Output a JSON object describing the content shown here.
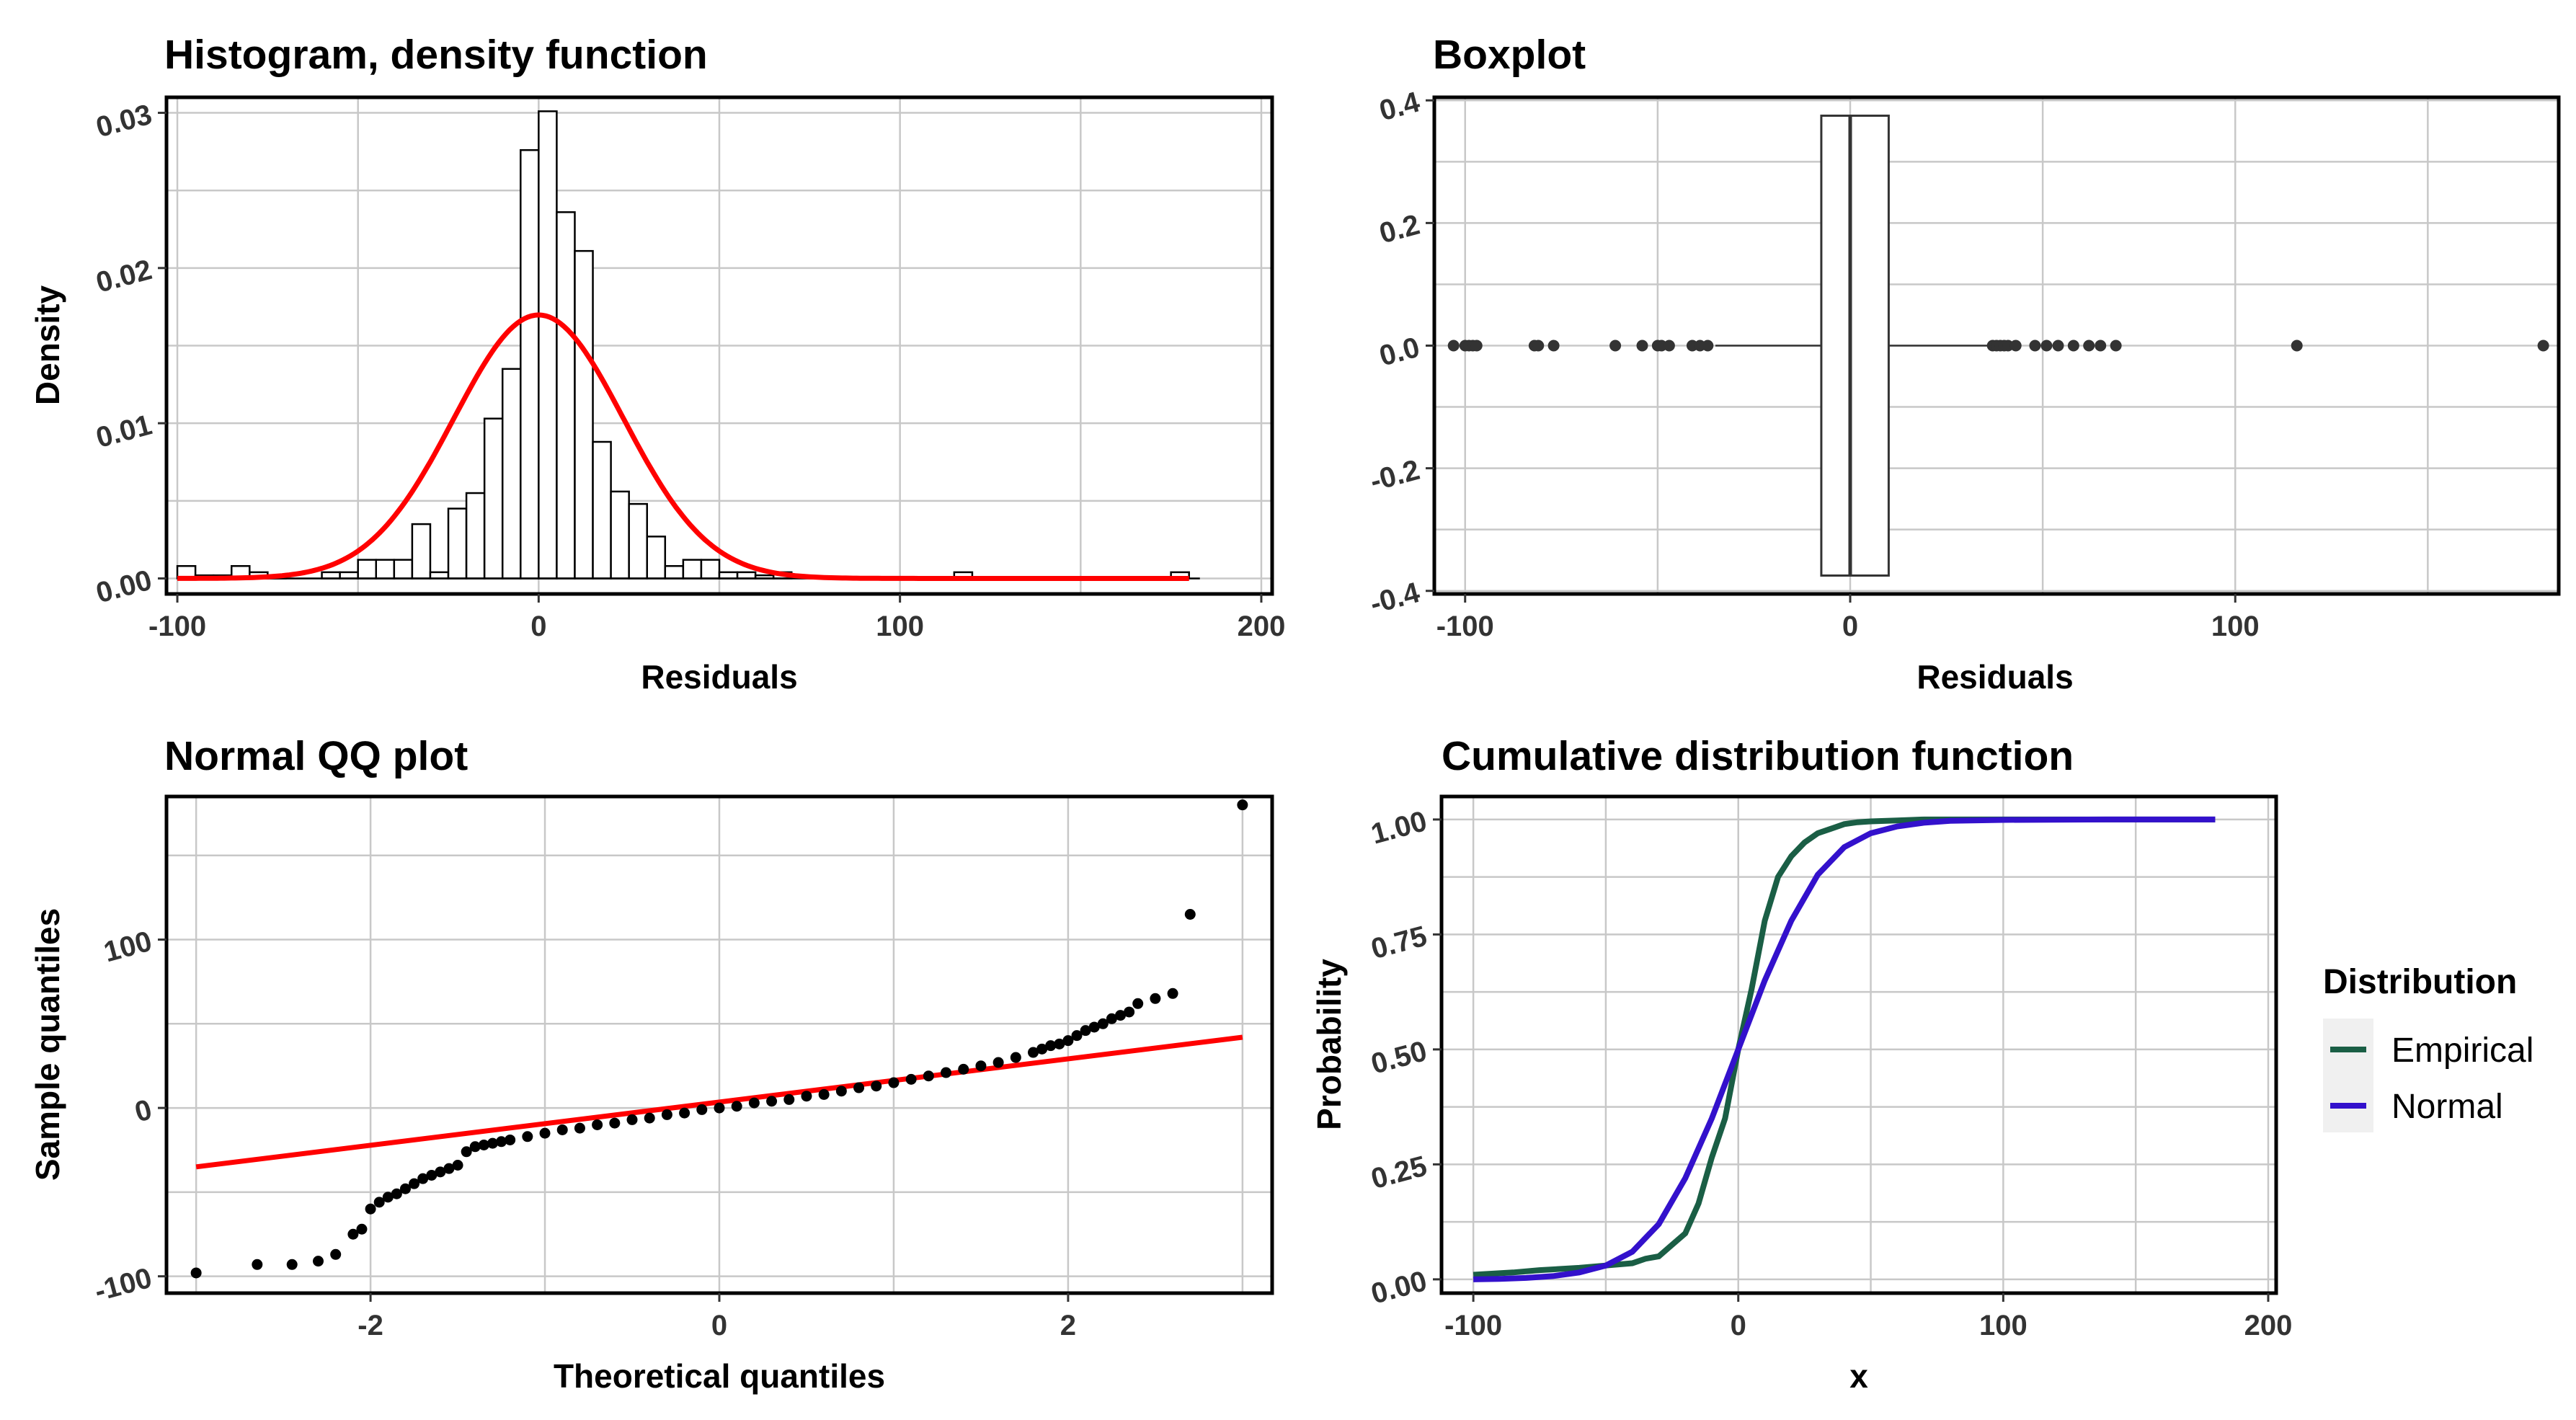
{
  "colors": {
    "grid": "#c8c8c8",
    "red": "#ff0000",
    "empirical": "#1a5e45",
    "normal": "#3311cc",
    "legend_bg": "#f0f0f0"
  },
  "chart_data": [
    {
      "type": "bar",
      "title": "Histogram, density function",
      "xlabel": "Residuals",
      "ylabel": "Density",
      "xlim": [
        -103,
        203
      ],
      "ylim": [
        -0.001,
        0.031
      ],
      "x_ticks": [
        -100,
        0,
        100,
        200
      ],
      "y_ticks": [
        0.0,
        0.01,
        0.02,
        0.03
      ],
      "x_tick_labels": [
        "-100",
        "0",
        "100",
        "200"
      ],
      "y_tick_labels": [
        "0.00",
        "0.01",
        "0.02",
        "0.03"
      ],
      "bin_width": 5,
      "bins": [
        {
          "x0": -100,
          "density": 0.0008
        },
        {
          "x0": -95,
          "density": 0.0002
        },
        {
          "x0": -90,
          "density": 0.0002
        },
        {
          "x0": -85,
          "density": 0.0008
        },
        {
          "x0": -80,
          "density": 0.0004
        },
        {
          "x0": -75,
          "density": 0.0002
        },
        {
          "x0": -60,
          "density": 0.0004
        },
        {
          "x0": -55,
          "density": 0.0004
        },
        {
          "x0": -50,
          "density": 0.0012
        },
        {
          "x0": -45,
          "density": 0.0012
        },
        {
          "x0": -40,
          "density": 0.0012
        },
        {
          "x0": -35,
          "density": 0.0035
        },
        {
          "x0": -30,
          "density": 0.0004
        },
        {
          "x0": -25,
          "density": 0.0045
        },
        {
          "x0": -20,
          "density": 0.0055
        },
        {
          "x0": -15,
          "density": 0.0103
        },
        {
          "x0": -10,
          "density": 0.0135
        },
        {
          "x0": -5,
          "density": 0.0276
        },
        {
          "x0": 0,
          "density": 0.0301
        },
        {
          "x0": 5,
          "density": 0.0236
        },
        {
          "x0": 10,
          "density": 0.0211
        },
        {
          "x0": 15,
          "density": 0.0088
        },
        {
          "x0": 20,
          "density": 0.0056
        },
        {
          "x0": 25,
          "density": 0.0048
        },
        {
          "x0": 30,
          "density": 0.0027
        },
        {
          "x0": 35,
          "density": 0.0008
        },
        {
          "x0": 40,
          "density": 0.0012
        },
        {
          "x0": 45,
          "density": 0.0012
        },
        {
          "x0": 50,
          "density": 0.0004
        },
        {
          "x0": 55,
          "density": 0.0004
        },
        {
          "x0": 60,
          "density": 0.0002
        },
        {
          "x0": 65,
          "density": 0.0004
        },
        {
          "x0": 115,
          "density": 0.0004
        },
        {
          "x0": 175,
          "density": 0.0004
        }
      ],
      "density_curve": {
        "type": "normal",
        "mean": 0,
        "sd": 23.5,
        "color": "red"
      }
    },
    {
      "type": "boxplot",
      "title": "Boxplot",
      "xlabel": "Residuals",
      "ylabel": "",
      "xlim": [
        -108,
        184
      ],
      "ylim": [
        -0.405,
        0.405
      ],
      "x_ticks": [
        -100,
        0,
        100
      ],
      "y_ticks": [
        -0.4,
        -0.2,
        0.0,
        0.2,
        0.4
      ],
      "x_tick_labels": [
        "-100",
        "0",
        "100"
      ],
      "y_tick_labels": [
        "-0.4",
        "-0.2",
        "0.0",
        "0.2",
        "0.4"
      ],
      "q1": -7.5,
      "median": 0,
      "q3": 10,
      "whisker_low": -35,
      "whisker_high": 37,
      "outliers": [
        -103,
        -100,
        -99,
        -98,
        -97,
        -82,
        -81,
        -77,
        -61,
        -54,
        -50,
        -49,
        -47,
        -41,
        -39,
        -37,
        37,
        38,
        39,
        40,
        41,
        43,
        48,
        51,
        54,
        58,
        62,
        65,
        69,
        116,
        180
      ]
    },
    {
      "type": "scatter",
      "title": "Normal QQ plot",
      "xlabel": "Theoretical quantiles",
      "ylabel": "Sample quantiles",
      "xlim": [
        -3.17,
        3.17
      ],
      "ylim": [
        -110,
        185
      ],
      "x_ticks": [
        -2,
        0,
        2
      ],
      "y_ticks": [
        -100,
        0,
        100
      ],
      "x_tick_labels": [
        "-2",
        "0",
        "2"
      ],
      "y_tick_labels": [
        "-100",
        "0",
        "100"
      ],
      "reference_line": {
        "x": [
          -3.0,
          3.0
        ],
        "y": [
          -35,
          42
        ],
        "color": "red"
      },
      "points": [
        [
          -3.0,
          -98
        ],
        [
          -2.65,
          -93
        ],
        [
          -2.45,
          -93
        ],
        [
          -2.3,
          -91
        ],
        [
          -2.2,
          -87
        ],
        [
          -2.1,
          -75
        ],
        [
          -2.05,
          -72
        ],
        [
          -2.0,
          -60
        ],
        [
          -1.95,
          -56
        ],
        [
          -1.9,
          -53
        ],
        [
          -1.85,
          -51
        ],
        [
          -1.8,
          -48
        ],
        [
          -1.75,
          -45
        ],
        [
          -1.7,
          -42
        ],
        [
          -1.65,
          -40
        ],
        [
          -1.6,
          -38
        ],
        [
          -1.55,
          -36
        ],
        [
          -1.5,
          -34
        ],
        [
          -1.45,
          -26
        ],
        [
          -1.4,
          -23
        ],
        [
          -1.35,
          -22
        ],
        [
          -1.3,
          -21
        ],
        [
          -1.25,
          -20
        ],
        [
          -1.2,
          -19
        ],
        [
          -1.1,
          -17
        ],
        [
          -1.0,
          -15
        ],
        [
          -0.9,
          -13
        ],
        [
          -0.8,
          -12
        ],
        [
          -0.7,
          -10
        ],
        [
          -0.6,
          -9
        ],
        [
          -0.5,
          -7
        ],
        [
          -0.4,
          -6
        ],
        [
          -0.3,
          -4
        ],
        [
          -0.2,
          -3
        ],
        [
          -0.1,
          -1
        ],
        [
          0.0,
          0
        ],
        [
          0.1,
          1
        ],
        [
          0.2,
          3
        ],
        [
          0.3,
          4
        ],
        [
          0.4,
          5
        ],
        [
          0.5,
          7
        ],
        [
          0.6,
          8
        ],
        [
          0.7,
          10
        ],
        [
          0.8,
          12
        ],
        [
          0.9,
          13
        ],
        [
          1.0,
          15
        ],
        [
          1.1,
          17
        ],
        [
          1.2,
          19
        ],
        [
          1.3,
          21
        ],
        [
          1.4,
          23
        ],
        [
          1.5,
          25
        ],
        [
          1.6,
          27
        ],
        [
          1.7,
          30
        ],
        [
          1.8,
          33
        ],
        [
          1.85,
          35
        ],
        [
          1.9,
          37
        ],
        [
          1.95,
          38
        ],
        [
          2.0,
          40
        ],
        [
          2.05,
          43
        ],
        [
          2.1,
          46
        ],
        [
          2.15,
          48
        ],
        [
          2.2,
          50
        ],
        [
          2.25,
          53
        ],
        [
          2.3,
          55
        ],
        [
          2.35,
          57
        ],
        [
          2.4,
          62
        ],
        [
          2.5,
          65
        ],
        [
          2.6,
          68
        ],
        [
          2.7,
          115
        ],
        [
          3.0,
          180
        ]
      ]
    },
    {
      "type": "line",
      "title": "Cumulative distribution function",
      "xlabel": "x",
      "ylabel": "Probability",
      "xlim": [
        -112,
        203
      ],
      "ylim": [
        -0.03,
        1.05
      ],
      "x_ticks": [
        -100,
        0,
        100,
        200
      ],
      "y_ticks": [
        0.0,
        0.25,
        0.5,
        0.75,
        1.0
      ],
      "x_tick_labels": [
        "-100",
        "0",
        "100",
        "200"
      ],
      "y_tick_labels": [
        "0.00",
        "0.25",
        "0.50",
        "0.75",
        "1.00"
      ],
      "legend": {
        "title": "Distribution",
        "position": "right",
        "entries": [
          "Empirical",
          "Normal"
        ]
      },
      "series": [
        {
          "name": "Empirical",
          "x": [
            -100,
            -85,
            -75,
            -60,
            -50,
            -40,
            -35,
            -30,
            -25,
            -20,
            -15,
            -10,
            -5,
            0,
            5,
            10,
            15,
            20,
            25,
            30,
            35,
            40,
            45,
            50,
            60,
            70,
            100,
            150,
            180
          ],
          "y": [
            0.01,
            0.015,
            0.02,
            0.025,
            0.03,
            0.035,
            0.045,
            0.05,
            0.075,
            0.1,
            0.165,
            0.265,
            0.35,
            0.5,
            0.63,
            0.78,
            0.875,
            0.92,
            0.95,
            0.97,
            0.98,
            0.99,
            0.994,
            0.996,
            0.998,
            1.0,
            1.0,
            1.0,
            1.0
          ]
        },
        {
          "name": "Normal",
          "x": [
            -100,
            -90,
            -80,
            -70,
            -60,
            -50,
            -40,
            -30,
            -20,
            -10,
            0,
            10,
            20,
            30,
            40,
            50,
            60,
            70,
            80,
            100,
            140,
            180
          ],
          "y": [
            0.0,
            0.001,
            0.003,
            0.007,
            0.015,
            0.03,
            0.06,
            0.12,
            0.22,
            0.35,
            0.5,
            0.65,
            0.78,
            0.88,
            0.94,
            0.97,
            0.985,
            0.993,
            0.997,
            0.999,
            1.0,
            1.0
          ]
        }
      ]
    }
  ]
}
